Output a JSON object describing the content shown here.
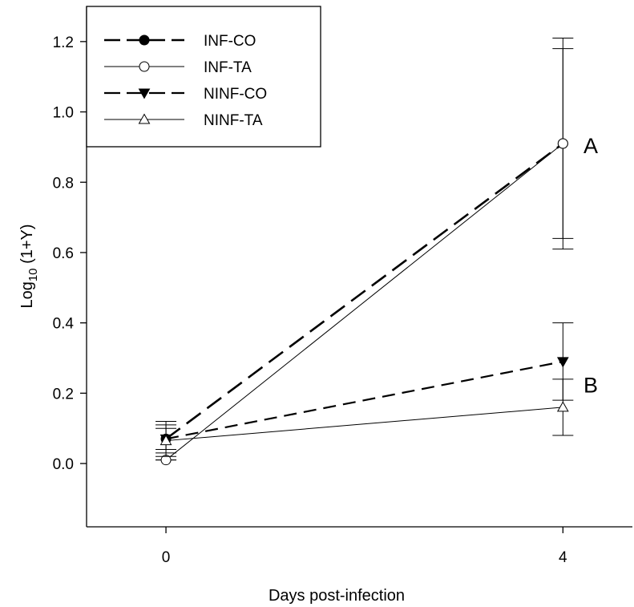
{
  "chart_data": {
    "type": "line",
    "xlabel": "Days post-infection",
    "ylabel_main": "Log",
    "ylabel_sub": "10",
    "ylabel_rest": " (1+Y)",
    "x_ticks": [
      0,
      4
    ],
    "x_tick_labels": [
      "0",
      "4"
    ],
    "xlim": [
      -0.8,
      4.7
    ],
    "y_ticks": [
      0.0,
      0.2,
      0.4,
      0.6,
      0.8,
      1.0,
      1.2
    ],
    "y_tick_labels": [
      "0.0",
      "0.2",
      "0.4",
      "0.6",
      "0.8",
      "1.0",
      "1.2"
    ],
    "ylim": [
      -0.18,
      1.3
    ],
    "grid": false,
    "legend_position": "top-left",
    "series": [
      {
        "name": "INF-CO",
        "x": [
          0,
          4
        ],
        "y": [
          0.07,
          0.91
        ],
        "err_low": [
          0.04,
          0.61
        ],
        "err_high": [
          0.1,
          1.21
        ],
        "marker": "filled-circle",
        "line": "dashed-thick"
      },
      {
        "name": "INF-TA",
        "x": [
          0,
          4
        ],
        "y": [
          0.01,
          0.91
        ],
        "err_low": [
          0.01,
          0.64
        ],
        "err_high": [
          0.01,
          1.18
        ],
        "marker": "open-circle",
        "line": "solid-thin"
      },
      {
        "name": "NINF-CO",
        "x": [
          0,
          4
        ],
        "y": [
          0.07,
          0.29
        ],
        "err_low": [
          0.03,
          0.18
        ],
        "err_high": [
          0.11,
          0.4
        ],
        "marker": "filled-triangle-down",
        "line": "dashed-medium"
      },
      {
        "name": "NINF-TA",
        "x": [
          0,
          4
        ],
        "y": [
          0.065,
          0.16
        ],
        "err_low": [
          0.02,
          0.08
        ],
        "err_high": [
          0.12,
          0.24
        ],
        "marker": "open-triangle-up",
        "line": "solid-thin"
      }
    ],
    "annotations": [
      {
        "text": "A",
        "x": 4.28,
        "y": 0.905
      },
      {
        "text": "B",
        "x": 4.28,
        "y": 0.225
      }
    ]
  }
}
